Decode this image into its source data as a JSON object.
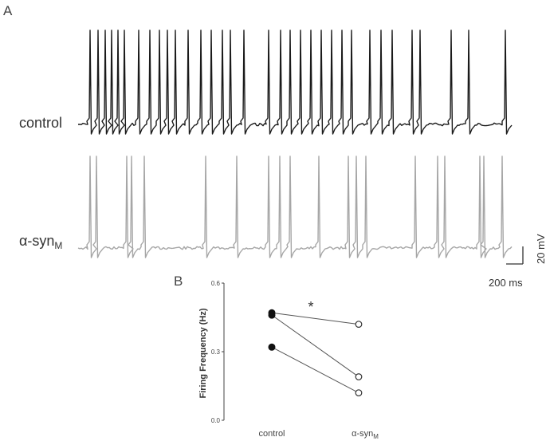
{
  "figure": {
    "panel_a": "A",
    "panel_b": "B",
    "trace_control_label": "control",
    "trace_asyn_label_main": "α-syn",
    "trace_asyn_label_sub": "M",
    "scale_voltage": "20 mV",
    "scale_time": "200 ms",
    "colors": {
      "control_trace": "#1a1a1a",
      "asyn_trace": "#a6a6a6",
      "axis": "#444444"
    }
  },
  "chart_data": {
    "type": "scatter",
    "ylabel": "Firing Frequency (Hz)",
    "categories": [
      "control",
      "α-syn"
    ],
    "category_subscripts": [
      "",
      "M"
    ],
    "yticks": [
      "0.0",
      "0.3",
      "0.6"
    ],
    "ylim": [
      0,
      0.6
    ],
    "significance": "*",
    "pairs": [
      {
        "control": 0.47,
        "asyn": 0.42
      },
      {
        "control": 0.46,
        "asyn": 0.19
      },
      {
        "control": 0.32,
        "asyn": 0.12
      }
    ],
    "markers": {
      "control": "filled-circle",
      "asyn": "open-circle"
    }
  }
}
